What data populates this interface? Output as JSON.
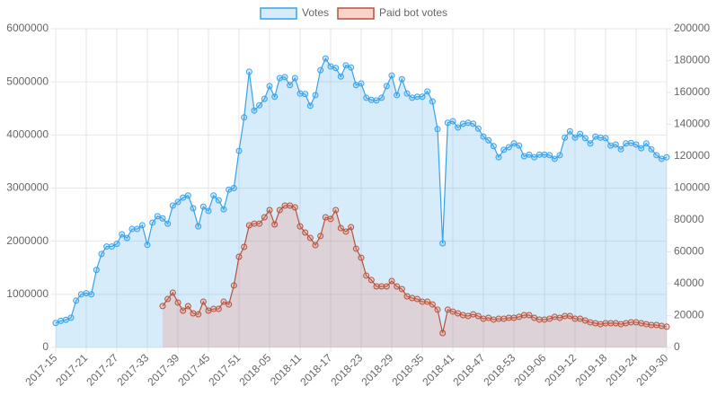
{
  "chart_data": {
    "type": "line",
    "categories": [
      "2017-15",
      null,
      null,
      null,
      null,
      null,
      "2017-21",
      null,
      null,
      null,
      null,
      null,
      "2017-27",
      null,
      null,
      null,
      null,
      null,
      "2017-33",
      null,
      null,
      null,
      null,
      null,
      "2017-39",
      null,
      null,
      null,
      null,
      null,
      "2017-45",
      null,
      null,
      null,
      null,
      null,
      "2017-51",
      null,
      null,
      null,
      null,
      null,
      "2018-05",
      null,
      null,
      null,
      null,
      null,
      "2018-11",
      null,
      null,
      null,
      null,
      null,
      "2018-17",
      null,
      null,
      null,
      null,
      null,
      "2018-23",
      null,
      null,
      null,
      null,
      null,
      "2018-29",
      null,
      null,
      null,
      null,
      null,
      "2018-35",
      null,
      null,
      null,
      null,
      null,
      "2018-41",
      null,
      null,
      null,
      null,
      null,
      "2018-47",
      null,
      null,
      null,
      null,
      null,
      "2018-53",
      null,
      null,
      null,
      null,
      null,
      "2019-06",
      null,
      null,
      null,
      null,
      null,
      "2019-12",
      null,
      null,
      null,
      null,
      null,
      "2019-18",
      null,
      null,
      null,
      null,
      null,
      "2019-24",
      null,
      null,
      null,
      null,
      null,
      "2019-30"
    ],
    "series": [
      {
        "name": "Votes",
        "color": "#36a2eb",
        "fill": "rgba(54,162,235,0.2)",
        "axis": "y",
        "values": [
          460000,
          500000,
          520000,
          560000,
          880000,
          1000000,
          1020000,
          1000000,
          1460000,
          1760000,
          1900000,
          1900000,
          1950000,
          2130000,
          2060000,
          2230000,
          2230000,
          2300000,
          1930000,
          2350000,
          2470000,
          2430000,
          2330000,
          2670000,
          2740000,
          2820000,
          2860000,
          2620000,
          2280000,
          2650000,
          2570000,
          2860000,
          2770000,
          2600000,
          2970000,
          3000000,
          3700000,
          4330000,
          5190000,
          4460000,
          4560000,
          4680000,
          4920000,
          4720000,
          5070000,
          5090000,
          4940000,
          5070000,
          4780000,
          4770000,
          4550000,
          4750000,
          5220000,
          5440000,
          5290000,
          5260000,
          5100000,
          5310000,
          5270000,
          4940000,
          4970000,
          4700000,
          4660000,
          4650000,
          4700000,
          4920000,
          5120000,
          4750000,
          5050000,
          4780000,
          4700000,
          4720000,
          4720000,
          4820000,
          4630000,
          4110000,
          1960000,
          4230000,
          4260000,
          4140000,
          4210000,
          4230000,
          4210000,
          4120000,
          3970000,
          3900000,
          3790000,
          3580000,
          3720000,
          3770000,
          3840000,
          3800000,
          3600000,
          3630000,
          3580000,
          3630000,
          3630000,
          3620000,
          3550000,
          3620000,
          3950000,
          4070000,
          3950000,
          4020000,
          3940000,
          3840000,
          3970000,
          3950000,
          3940000,
          3800000,
          3820000,
          3730000,
          3840000,
          3850000,
          3820000,
          3750000,
          3840000,
          3730000,
          3620000,
          3550000,
          3580000
        ]
      },
      {
        "name": "Paid bot votes",
        "color": "#b5523b",
        "fill": "rgba(240,110,80,0.2)",
        "axis": "y2",
        "values": [
          null,
          null,
          null,
          null,
          null,
          null,
          null,
          null,
          null,
          null,
          null,
          null,
          null,
          null,
          null,
          null,
          null,
          null,
          null,
          null,
          null,
          26000,
          30400,
          34400,
          28200,
          23100,
          25900,
          21400,
          20800,
          28700,
          23100,
          24200,
          24200,
          28700,
          27000,
          38900,
          56900,
          63100,
          76600,
          77700,
          77700,
          81700,
          86200,
          77200,
          86200,
          89000,
          89000,
          87900,
          76000,
          72100,
          68700,
          64200,
          69900,
          81700,
          80600,
          86200,
          74900,
          72700,
          75500,
          62000,
          56300,
          45100,
          42300,
          38300,
          38300,
          38300,
          41700,
          38300,
          36600,
          32100,
          31000,
          30400,
          28700,
          28700,
          27000,
          23700,
          9000,
          23700,
          22500,
          21400,
          20300,
          19700,
          20800,
          19700,
          18000,
          18600,
          17500,
          18000,
          18000,
          18600,
          18600,
          19200,
          20300,
          20300,
          18600,
          17500,
          17500,
          18000,
          19200,
          18600,
          19700,
          19700,
          18000,
          18000,
          16900,
          15800,
          15200,
          14600,
          15200,
          15200,
          15200,
          14600,
          15200,
          15800,
          15800,
          15200,
          14600,
          14100,
          14100,
          13500,
          13000
        ]
      }
    ],
    "ylim": [
      0,
      6000000
    ],
    "yticks": [
      0,
      1000000,
      2000000,
      3000000,
      4000000,
      5000000,
      6000000
    ],
    "y2lim": [
      0,
      200000
    ],
    "y2ticks": [
      0,
      20000,
      40000,
      60000,
      80000,
      100000,
      120000,
      140000,
      160000,
      180000,
      200000
    ],
    "grid": true,
    "legend": "top"
  }
}
